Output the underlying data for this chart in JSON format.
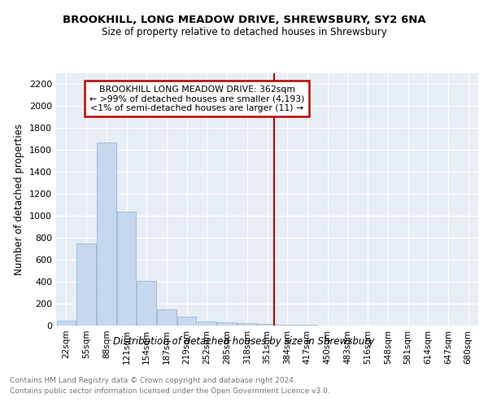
{
  "title1": "BROOKHILL, LONG MEADOW DRIVE, SHREWSBURY, SY2 6NA",
  "title2": "Size of property relative to detached houses in Shrewsbury",
  "xlabel": "Distribution of detached houses by size in Shrewsbury",
  "ylabel": "Number of detached properties",
  "bar_labels": [
    "22sqm",
    "55sqm",
    "88sqm",
    "121sqm",
    "154sqm",
    "187sqm",
    "219sqm",
    "252sqm",
    "285sqm",
    "318sqm",
    "351sqm",
    "384sqm",
    "417sqm",
    "450sqm",
    "483sqm",
    "516sqm",
    "548sqm",
    "581sqm",
    "614sqm",
    "647sqm",
    "680sqm"
  ],
  "bar_values": [
    48,
    748,
    1670,
    1040,
    405,
    148,
    80,
    38,
    28,
    20,
    18,
    10,
    4,
    2,
    1,
    0,
    0,
    0,
    0,
    0,
    0
  ],
  "bar_color": "#c5d8ed",
  "bar_edge_color": "#9ab8d8",
  "ylim": [
    0,
    2300
  ],
  "yticks": [
    0,
    200,
    400,
    600,
    800,
    1000,
    1200,
    1400,
    1600,
    1800,
    2000,
    2200
  ],
  "vline_color": "#c00000",
  "vline_x_index": 10.33,
  "annotation_line1": "BROOKHILL LONG MEADOW DRIVE: 362sqm",
  "annotation_line2": "← >99% of detached houses are smaller (4,193)",
  "annotation_line3": "<1% of semi-detached houses are larger (11) →",
  "annotation_box_color": "#c00000",
  "background_color": "#e8eef5",
  "grid_color": "#ffffff",
  "footer1": "Contains HM Land Registry data © Crown copyright and database right 2024.",
  "footer2": "Contains public sector information licensed under the Open Government Licence v3.0."
}
